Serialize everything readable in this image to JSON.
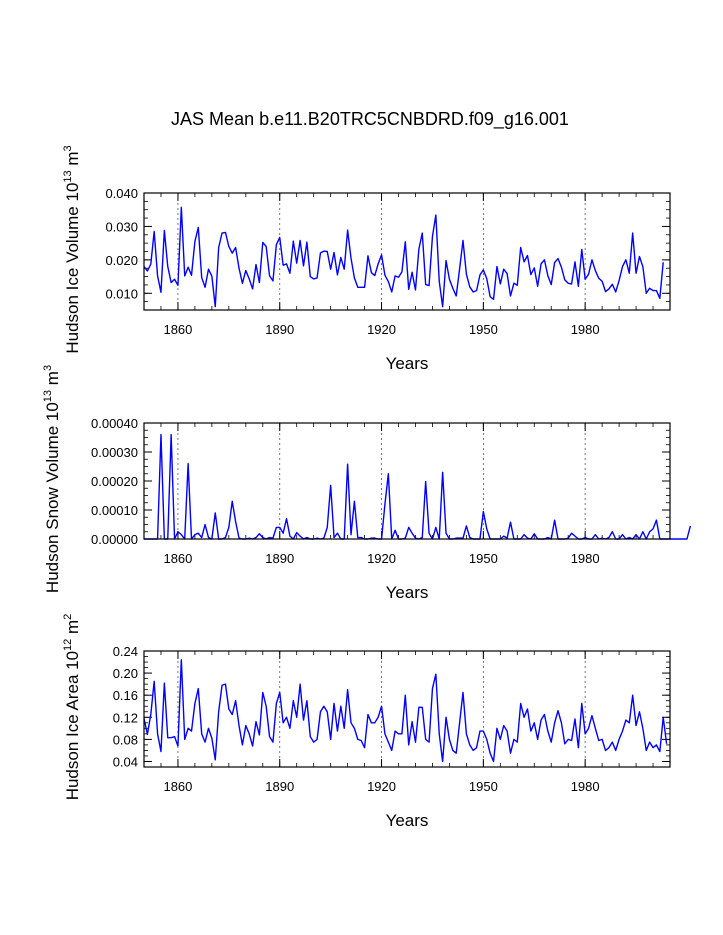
{
  "title": "JAS Mean b.e11.B20TRC5CNBDRD.f09_g16.001",
  "line_color": "#0000ff",
  "chart_data": [
    {
      "type": "line",
      "ylabel": "Hudson Ice Volume 10",
      "ylabel_exp": "13",
      "ylabel_unit": " m",
      "ylabel_unit_exp": "3",
      "xlabel": "Years",
      "xlim": [
        1850,
        2005
      ],
      "ylim": [
        0.005,
        0.04
      ],
      "yticks": [
        0.01,
        0.02,
        0.03,
        0.04
      ],
      "ytick_labels": [
        "0.010",
        "0.020",
        "0.030",
        "0.040"
      ],
      "xticks": [
        1860,
        1890,
        1920,
        1950,
        1980
      ],
      "xtick_labels": [
        "1860",
        "1890",
        "1920",
        "1950",
        "1980"
      ],
      "gridlines_x": [
        1860,
        1890,
        1920,
        1950,
        1980
      ],
      "x_start": 1850,
      "values": [
        0.018,
        0.0167,
        0.0187,
        0.0285,
        0.0152,
        0.0103,
        0.0288,
        0.018,
        0.0132,
        0.0142,
        0.0124,
        0.0357,
        0.0152,
        0.0178,
        0.0154,
        0.0255,
        0.0297,
        0.0147,
        0.0118,
        0.0172,
        0.0151,
        0.006,
        0.0237,
        0.028,
        0.0282,
        0.024,
        0.022,
        0.0237,
        0.0175,
        0.013,
        0.0168,
        0.0143,
        0.0113,
        0.0186,
        0.0132,
        0.0252,
        0.024,
        0.0152,
        0.0137,
        0.0245,
        0.0267,
        0.0184,
        0.0188,
        0.016,
        0.0256,
        0.019,
        0.0258,
        0.0182,
        0.0253,
        0.015,
        0.0143,
        0.0146,
        0.0221,
        0.0226,
        0.0225,
        0.0172,
        0.0222,
        0.0155,
        0.0207,
        0.0172,
        0.0289,
        0.0205,
        0.0146,
        0.0118,
        0.0118,
        0.0118,
        0.0212,
        0.0162,
        0.0153,
        0.0188,
        0.0215,
        0.0154,
        0.0135,
        0.0104,
        0.0152,
        0.0148,
        0.0164,
        0.0254,
        0.0112,
        0.0163,
        0.011,
        0.0232,
        0.028,
        0.0126,
        0.0123,
        0.027,
        0.0334,
        0.0136,
        0.006,
        0.0198,
        0.0142,
        0.0115,
        0.0092,
        0.0173,
        0.0258,
        0.0157,
        0.0119,
        0.0104,
        0.0108,
        0.0155,
        0.017,
        0.0144,
        0.009,
        0.0082,
        0.018,
        0.0128,
        0.0172,
        0.0159,
        0.0092,
        0.013,
        0.0124,
        0.0237,
        0.0194,
        0.0213,
        0.0156,
        0.0176,
        0.0121,
        0.0188,
        0.02,
        0.0153,
        0.0126,
        0.0192,
        0.0204,
        0.0178,
        0.014,
        0.013,
        0.0128,
        0.0194,
        0.0121,
        0.0231,
        0.0142,
        0.0157,
        0.02,
        0.0168,
        0.0145,
        0.0136,
        0.0105,
        0.0113,
        0.0127,
        0.0104,
        0.0138,
        0.018,
        0.02,
        0.016,
        0.028,
        0.016,
        0.021,
        0.018,
        0.01,
        0.0115,
        0.0108,
        0.0108,
        0.0085,
        0.0193
      ]
    },
    {
      "type": "line",
      "ylabel": "Hudson Snow Volume 10",
      "ylabel_exp": "13",
      "ylabel_unit": " m",
      "ylabel_unit_exp": "3",
      "xlabel": "Years",
      "xlim": [
        1850,
        2005
      ],
      "ylim": [
        0.0,
        0.0004
      ],
      "yticks": [
        0.0,
        0.0001,
        0.0002,
        0.0003,
        0.0004
      ],
      "ytick_labels": [
        "0.00000",
        "0.00010",
        "0.00020",
        "0.00030",
        "0.00040"
      ],
      "xticks": [
        1860,
        1890,
        1920,
        1950,
        1980
      ],
      "xtick_labels": [
        "1860",
        "1890",
        "1920",
        "1950",
        "1980"
      ],
      "gridlines_x": [
        1860,
        1890,
        1920,
        1950,
        1980
      ],
      "x_start": 1850,
      "values": [
        0.0,
        0.0,
        0.0,
        0.0,
        0.0,
        0.00036,
        0.0,
        0.0,
        0.00036,
        0.0,
        2.5e-05,
        1.5e-05,
        0.0,
        0.00026,
        0.0,
        1.5e-05,
        2e-05,
        5e-06,
        5e-05,
        5e-06,
        0.0,
        9e-05,
        0.0,
        0.0,
        5e-06,
        4e-05,
        0.00013,
        6e-05,
        3e-06,
        0.0,
        0.0,
        3e-06,
        0.0,
        5e-06,
        1.8e-05,
        5e-06,
        0.0,
        5e-06,
        3e-06,
        4e-05,
        4e-05,
        2e-05,
        7e-05,
        1e-05,
        0.0,
        2.2e-05,
        1e-05,
        0.0,
        5e-06,
        0.0,
        0.0,
        3e-06,
        0.0,
        3e-06,
        4e-05,
        0.000185,
        5e-06,
        2e-05,
        0.0,
        0.0,
        0.000258,
        1.5e-05,
        0.00013,
        5e-06,
        5e-06,
        0.0,
        0.0,
        3e-06,
        3e-06,
        0.0,
        0.0,
        0.00012,
        0.000225,
        0.0,
        3e-05,
        0.0,
        0.0,
        3e-06,
        4e-05,
        2e-05,
        3e-06,
        0.0,
        5e-06,
        0.000198,
        2e-05,
        0.0,
        4e-05,
        0.0,
        0.00023,
        2e-05,
        0.0,
        0.0,
        3e-06,
        3e-06,
        3e-06,
        4.5e-05,
        5e-06,
        0.0,
        0.0,
        0.0,
        9.5e-05,
        3.5e-05,
        0.0,
        0.0,
        0.0,
        0.0,
        1e-05,
        3e-06,
        5.8e-05,
        0.0,
        0.0,
        0.0,
        1.5e-05,
        3e-06,
        0.0,
        1.8e-05,
        0.0,
        0.0,
        0.0,
        5e-06,
        0.0,
        6.5e-05,
        0.0,
        0.0,
        0.0,
        3e-06,
        2e-05,
        1e-05,
        0.0,
        0.0,
        5e-06,
        0.0,
        0.0,
        1.5e-05,
        0.0,
        3e-06,
        0.0,
        5e-06,
        2.5e-05,
        0.0,
        0.0,
        1.5e-05,
        0.0,
        5e-06,
        0.0,
        1.5e-05,
        0.0,
        2.5e-05,
        0.0,
        2.5e-05,
        3.5e-05,
        6.5e-05,
        0.0,
        0.0,
        0.0,
        0.0,
        0.0,
        0.0,
        0.0,
        0.0,
        0.0,
        4.5e-05
      ]
    },
    {
      "type": "line",
      "ylabel": "Hudson Ice Area 10",
      "ylabel_exp": "12",
      "ylabel_unit": " m",
      "ylabel_unit_exp": "2",
      "xlabel": "Years",
      "xlim": [
        1850,
        2005
      ],
      "ylim": [
        0.03,
        0.24
      ],
      "yticks": [
        0.04,
        0.08,
        0.12,
        0.16,
        0.2,
        0.24
      ],
      "ytick_labels": [
        "0.04",
        "0.08",
        "0.12",
        "0.16",
        "0.20",
        "0.24"
      ],
      "xticks": [
        1860,
        1890,
        1920,
        1950,
        1980
      ],
      "xtick_labels": [
        "1860",
        "1890",
        "1920",
        "1950",
        "1980"
      ],
      "gridlines_x": [
        1860,
        1890,
        1920,
        1950,
        1980
      ],
      "x_start": 1850,
      "values": [
        0.118,
        0.089,
        0.125,
        0.185,
        0.09,
        0.058,
        0.182,
        0.083,
        0.083,
        0.085,
        0.068,
        0.224,
        0.08,
        0.1,
        0.095,
        0.145,
        0.172,
        0.09,
        0.075,
        0.1,
        0.082,
        0.043,
        0.13,
        0.178,
        0.18,
        0.135,
        0.125,
        0.15,
        0.105,
        0.07,
        0.105,
        0.09,
        0.068,
        0.112,
        0.088,
        0.165,
        0.14,
        0.085,
        0.075,
        0.145,
        0.165,
        0.11,
        0.12,
        0.1,
        0.15,
        0.12,
        0.18,
        0.115,
        0.15,
        0.085,
        0.075,
        0.08,
        0.13,
        0.14,
        0.13,
        0.08,
        0.145,
        0.095,
        0.14,
        0.1,
        0.17,
        0.11,
        0.1,
        0.08,
        0.078,
        0.065,
        0.125,
        0.11,
        0.11,
        0.12,
        0.14,
        0.09,
        0.075,
        0.06,
        0.095,
        0.09,
        0.09,
        0.16,
        0.07,
        0.112,
        0.075,
        0.138,
        0.138,
        0.08,
        0.075,
        0.172,
        0.198,
        0.09,
        0.04,
        0.12,
        0.08,
        0.06,
        0.055,
        0.11,
        0.165,
        0.09,
        0.07,
        0.06,
        0.065,
        0.095,
        0.095,
        0.08,
        0.055,
        0.04,
        0.1,
        0.08,
        0.105,
        0.095,
        0.055,
        0.08,
        0.075,
        0.145,
        0.12,
        0.135,
        0.095,
        0.11,
        0.08,
        0.115,
        0.125,
        0.095,
        0.075,
        0.11,
        0.132,
        0.11,
        0.072,
        0.08,
        0.078,
        0.117,
        0.065,
        0.145,
        0.09,
        0.1,
        0.123,
        0.1,
        0.078,
        0.08,
        0.06,
        0.065,
        0.075,
        0.06,
        0.08,
        0.095,
        0.115,
        0.11,
        0.16,
        0.105,
        0.13,
        0.1,
        0.06,
        0.075,
        0.065,
        0.07,
        0.058,
        0.12,
        0.072
      ]
    }
  ]
}
